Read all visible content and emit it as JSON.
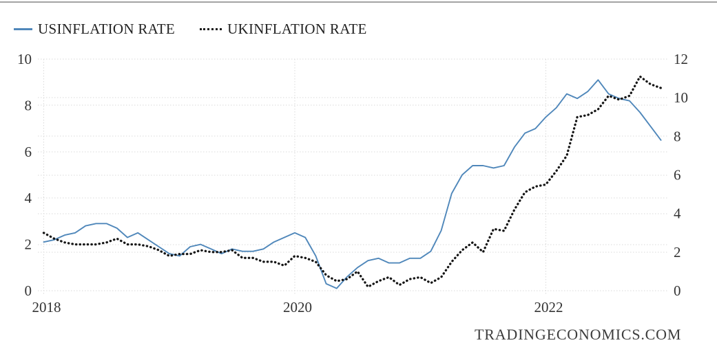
{
  "legend": {
    "items": [
      {
        "label": "USINFLATION RATE",
        "color": "#4f87ba",
        "style": "solid"
      },
      {
        "label": "UKINFLATION RATE",
        "color": "#161616",
        "style": "dotted"
      }
    ]
  },
  "watermark": "TRADINGECONOMICS.COM",
  "colors": {
    "us_line": "#4f87ba",
    "uk_line": "#161616",
    "gridline": "#d9d9d9",
    "axis_text": "#333333",
    "top_border": "#a3a3a3",
    "background": "#ffffff"
  },
  "chart_data": {
    "type": "line",
    "title": "",
    "x_unit": "month",
    "x_start": "2018-01",
    "x_end": "2022-12",
    "grid": true,
    "legend_position": "top-left",
    "x_tick_labels": [
      "2018",
      "2020",
      "2022"
    ],
    "x_tick_years": [
      2018,
      2020,
      2022
    ],
    "left_axis": {
      "min": 0,
      "max": 10,
      "ticks": [
        0,
        2,
        4,
        6,
        8,
        10
      ],
      "series": "USINFLATION RATE"
    },
    "right_axis": {
      "min": 0,
      "max": 12,
      "ticks": [
        0,
        2,
        4,
        6,
        8,
        10,
        12
      ],
      "series": "UKINFLATION RATE"
    },
    "series": [
      {
        "name": "USINFLATION RATE",
        "axis": "left",
        "style": "solid",
        "color": "#4f87ba",
        "values": [
          2.1,
          2.2,
          2.4,
          2.5,
          2.8,
          2.9,
          2.9,
          2.7,
          2.3,
          2.5,
          2.2,
          1.9,
          1.6,
          1.5,
          1.9,
          2.0,
          1.8,
          1.6,
          1.8,
          1.7,
          1.7,
          1.8,
          2.1,
          2.3,
          2.5,
          2.3,
          1.5,
          0.3,
          0.1,
          0.6,
          1.0,
          1.3,
          1.4,
          1.2,
          1.2,
          1.4,
          1.4,
          1.7,
          2.6,
          4.2,
          5.0,
          5.4,
          5.4,
          5.3,
          5.4,
          6.2,
          6.8,
          7.0,
          7.5,
          7.9,
          8.5,
          8.3,
          8.6,
          9.1,
          8.5,
          8.3,
          8.2,
          7.7,
          7.1,
          6.5
        ]
      },
      {
        "name": "UKINFLATION RATE",
        "axis": "right",
        "style": "dotted",
        "color": "#161616",
        "values": [
          3.0,
          2.7,
          2.5,
          2.4,
          2.4,
          2.4,
          2.5,
          2.7,
          2.4,
          2.4,
          2.3,
          2.1,
          1.8,
          1.9,
          1.9,
          2.1,
          2.0,
          2.0,
          2.1,
          1.7,
          1.7,
          1.5,
          1.5,
          1.3,
          1.8,
          1.7,
          1.5,
          0.8,
          0.5,
          0.6,
          1.0,
          0.2,
          0.5,
          0.7,
          0.3,
          0.6,
          0.7,
          0.4,
          0.7,
          1.5,
          2.1,
          2.5,
          2.0,
          3.2,
          3.1,
          4.2,
          5.1,
          5.4,
          5.5,
          6.2,
          7.0,
          9.0,
          9.1,
          9.4,
          10.1,
          9.9,
          10.1,
          11.1,
          10.7,
          10.5
        ]
      }
    ]
  }
}
